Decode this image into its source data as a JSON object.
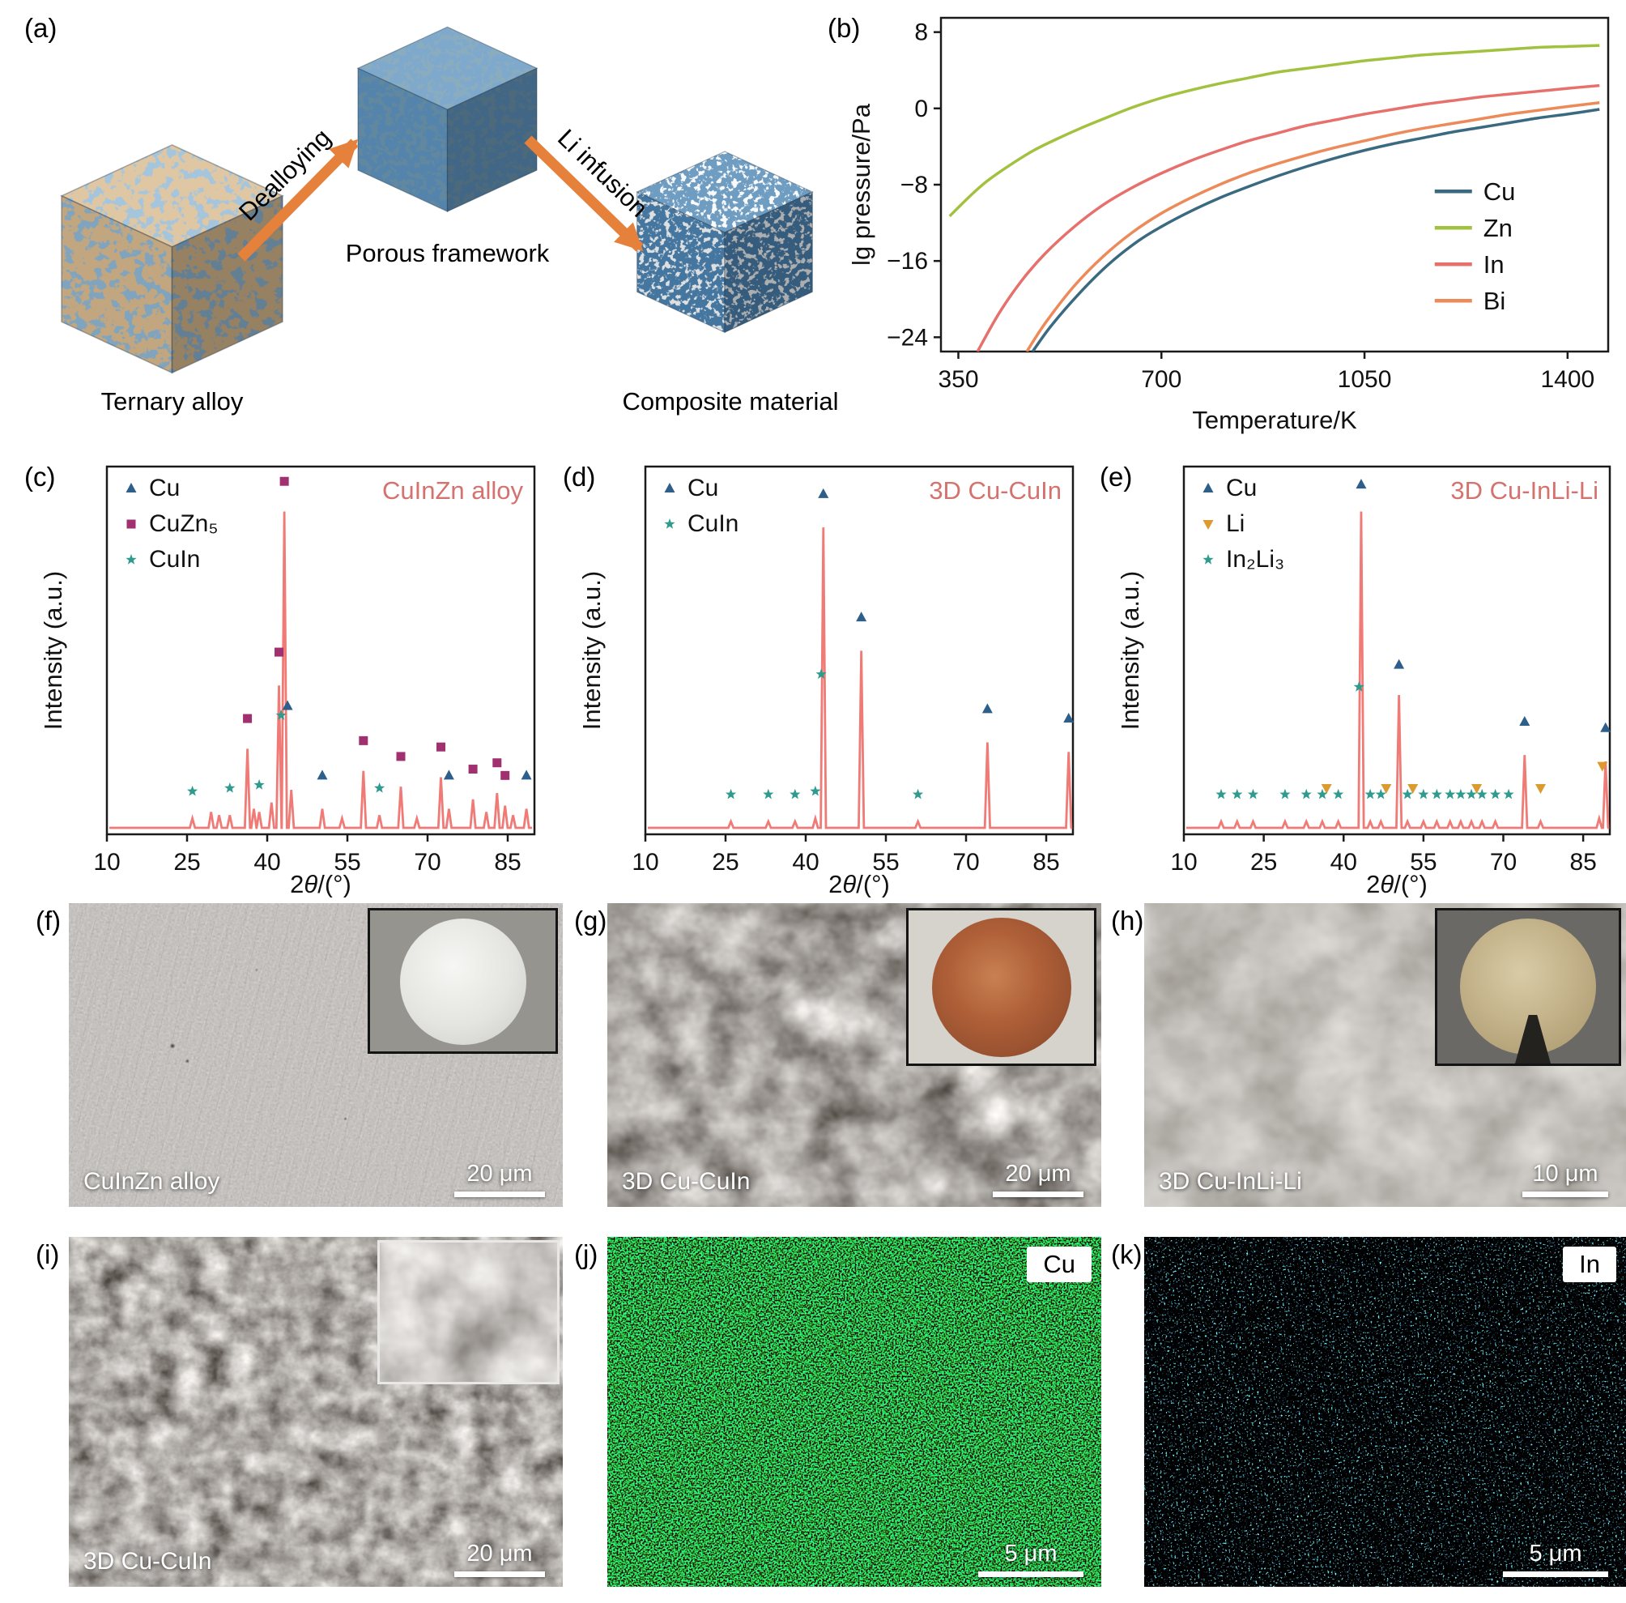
{
  "panel_a": {
    "letter": "(a)",
    "arrow_color": "#e6813c",
    "arrows": [
      {
        "label": "Dealloying"
      },
      {
        "label": "Li infusion"
      }
    ],
    "cubes": [
      {
        "label": "Ternary alloy",
        "base": "#d9b98e",
        "spot": "#4679a8"
      },
      {
        "label": "Porous framework",
        "base": "#5e93c0",
        "spot": "#27506f"
      },
      {
        "label": "Composite material",
        "base": "#4c84b2",
        "spot": "#eef2f5"
      }
    ]
  },
  "panel_b": {
    "letter": "(b)"
  },
  "panel_c": {
    "letter": "(c)"
  },
  "panel_d": {
    "letter": "(d)"
  },
  "panel_e": {
    "letter": "(e)"
  },
  "panel_f": {
    "letter": "(f)",
    "label": "CuInZn alloy",
    "scale": "20 μm"
  },
  "panel_g": {
    "letter": "(g)",
    "label": "3D Cu-CuIn",
    "scale": "20 μm"
  },
  "panel_h": {
    "letter": "(h)",
    "label": "3D Cu-InLi-Li",
    "scale": "10 μm"
  },
  "panel_i": {
    "letter": "(i)",
    "label": "3D Cu-CuIn",
    "scale": "20 μm"
  },
  "panel_j": {
    "letter": "(j)",
    "tag": "Cu",
    "scale": "5 μm"
  },
  "panel_k": {
    "letter": "(k)",
    "tag": "In",
    "scale": "5 μm"
  },
  "chart_data": [
    {
      "id": "b",
      "type": "line",
      "xlabel": "Temperature/K",
      "ylabel": "lg pressure/Pa",
      "xlim": [
        320,
        1470
      ],
      "ylim": [
        -25.5,
        9.5
      ],
      "xticks": [
        350,
        700,
        1050,
        1400
      ],
      "yticks": [
        8,
        0,
        -8,
        -16,
        -24
      ],
      "legend_position": "right-middle",
      "grid": false,
      "series": [
        {
          "name": "Cu",
          "color": "#3a6a80",
          "points": [
            [
              478,
              -25.5
            ],
            [
              510,
              -22.8
            ],
            [
              560,
              -19.3
            ],
            [
              610,
              -16.3
            ],
            [
              660,
              -13.9
            ],
            [
              700,
              -12.4
            ],
            [
              750,
              -10.8
            ],
            [
              800,
              -9.4
            ],
            [
              850,
              -8.2
            ],
            [
              900,
              -7.1
            ],
            [
              950,
              -6.1
            ],
            [
              1000,
              -5.2
            ],
            [
              1050,
              -4.4
            ],
            [
              1100,
              -3.7
            ],
            [
              1150,
              -3.1
            ],
            [
              1200,
              -2.5
            ],
            [
              1250,
              -2.0
            ],
            [
              1300,
              -1.5
            ],
            [
              1350,
              -1.0
            ],
            [
              1400,
              -0.6
            ],
            [
              1455,
              -0.1
            ]
          ]
        },
        {
          "name": "Zn",
          "color": "#a2c23f",
          "points": [
            [
              335,
              -11.3
            ],
            [
              370,
              -9.2
            ],
            [
              400,
              -7.6
            ],
            [
              440,
              -5.9
            ],
            [
              480,
              -4.4
            ],
            [
              520,
              -3.2
            ],
            [
              560,
              -2.1
            ],
            [
              600,
              -1.1
            ],
            [
              650,
              0.1
            ],
            [
              700,
              1.1
            ],
            [
              750,
              1.9
            ],
            [
              800,
              2.6
            ],
            [
              850,
              3.2
            ],
            [
              900,
              3.8
            ],
            [
              950,
              4.2
            ],
            [
              1000,
              4.6
            ],
            [
              1050,
              5.0
            ],
            [
              1100,
              5.3
            ],
            [
              1150,
              5.6
            ],
            [
              1200,
              5.8
            ],
            [
              1250,
              6.0
            ],
            [
              1300,
              6.2
            ],
            [
              1350,
              6.4
            ],
            [
              1400,
              6.5
            ],
            [
              1455,
              6.6
            ]
          ]
        },
        {
          "name": "In",
          "color": "#e7706c",
          "points": [
            [
              383,
              -25.5
            ],
            [
              420,
              -21.5
            ],
            [
              460,
              -18.0
            ],
            [
              500,
              -15.2
            ],
            [
              550,
              -12.4
            ],
            [
              600,
              -10.1
            ],
            [
              650,
              -8.3
            ],
            [
              700,
              -6.8
            ],
            [
              750,
              -5.5
            ],
            [
              800,
              -4.4
            ],
            [
              850,
              -3.4
            ],
            [
              900,
              -2.6
            ],
            [
              950,
              -1.8
            ],
            [
              1000,
              -1.2
            ],
            [
              1050,
              -0.6
            ],
            [
              1100,
              -0.1
            ],
            [
              1150,
              0.4
            ],
            [
              1200,
              0.8
            ],
            [
              1250,
              1.2
            ],
            [
              1300,
              1.5
            ],
            [
              1350,
              1.8
            ],
            [
              1400,
              2.1
            ],
            [
              1455,
              2.4
            ]
          ]
        },
        {
          "name": "Bi",
          "color": "#ec8a59",
          "points": [
            [
              468,
              -25.5
            ],
            [
              500,
              -22.5
            ],
            [
              550,
              -18.6
            ],
            [
              600,
              -15.5
            ],
            [
              650,
              -13.0
            ],
            [
              700,
              -11.0
            ],
            [
              750,
              -9.4
            ],
            [
              800,
              -8.0
            ],
            [
              850,
              -6.8
            ],
            [
              900,
              -5.8
            ],
            [
              950,
              -4.9
            ],
            [
              1000,
              -4.1
            ],
            [
              1050,
              -3.4
            ],
            [
              1100,
              -2.7
            ],
            [
              1150,
              -2.1
            ],
            [
              1200,
              -1.6
            ],
            [
              1250,
              -1.1
            ],
            [
              1300,
              -0.6
            ],
            [
              1350,
              -0.2
            ],
            [
              1400,
              0.2
            ],
            [
              1455,
              0.6
            ]
          ]
        }
      ]
    },
    {
      "id": "c",
      "type": "xrd",
      "title": "CuInZn alloy",
      "title_color": "#d4736e",
      "xlabel": "2θ/(°)",
      "ylabel": "Intensity (a.u.)",
      "xlim": [
        10,
        90
      ],
      "xticks": [
        10,
        25,
        40,
        55,
        70,
        85
      ],
      "line_color": "#ef7a76",
      "peaks": [
        [
          26,
          0.03
        ],
        [
          29.5,
          0.05
        ],
        [
          31,
          0.04
        ],
        [
          33,
          0.04
        ],
        [
          36.3,
          0.25
        ],
        [
          37.5,
          0.06
        ],
        [
          38.5,
          0.05
        ],
        [
          40.8,
          0.08
        ],
        [
          42.2,
          0.45
        ],
        [
          43.2,
          1.0
        ],
        [
          44.5,
          0.12
        ],
        [
          50.3,
          0.06
        ],
        [
          54,
          0.03
        ],
        [
          58,
          0.18
        ],
        [
          61,
          0.04
        ],
        [
          65,
          0.13
        ],
        [
          68,
          0.03
        ],
        [
          72.5,
          0.16
        ],
        [
          74,
          0.06
        ],
        [
          78.5,
          0.09
        ],
        [
          81,
          0.05
        ],
        [
          83,
          0.11
        ],
        [
          84.5,
          0.07
        ],
        [
          86,
          0.04
        ],
        [
          88.5,
          0.06
        ]
      ],
      "legend": [
        {
          "name": "Cu",
          "marker": "triangle",
          "color": "#2d5f8a"
        },
        {
          "name": "CuZn₅",
          "marker": "square",
          "color": "#a03070"
        },
        {
          "name": "CuIn",
          "marker": "star",
          "color": "#2f9b8e"
        }
      ],
      "markers": {
        "triangle": [
          [
            43.8,
            0.36
          ],
          [
            50.3,
            0.14
          ],
          [
            74,
            0.14
          ],
          [
            88.5,
            0.14
          ]
        ],
        "square": [
          [
            36.3,
            0.32
          ],
          [
            42.2,
            0.53
          ],
          [
            43.2,
            1.07
          ],
          [
            58,
            0.25
          ],
          [
            65,
            0.2
          ],
          [
            72.5,
            0.23
          ],
          [
            78.5,
            0.16
          ],
          [
            83,
            0.18
          ],
          [
            84.5,
            0.14
          ]
        ],
        "star": [
          [
            26,
            0.09
          ],
          [
            33,
            0.1
          ],
          [
            38.5,
            0.11
          ],
          [
            42.6,
            0.33
          ],
          [
            61,
            0.1
          ]
        ]
      }
    },
    {
      "id": "d",
      "type": "xrd",
      "title": "3D Cu-CuIn",
      "title_color": "#d4736e",
      "xlabel": "2θ/(°)",
      "ylabel": "Intensity (a.u.)",
      "xlim": [
        10,
        90
      ],
      "xticks": [
        10,
        25,
        40,
        55,
        70,
        85
      ],
      "line_color": "#ef7a76",
      "peaks": [
        [
          26,
          0.02
        ],
        [
          33,
          0.02
        ],
        [
          38,
          0.02
        ],
        [
          41.8,
          0.03
        ],
        [
          43.3,
          0.95
        ],
        [
          50.4,
          0.56
        ],
        [
          61,
          0.02
        ],
        [
          74,
          0.27
        ],
        [
          89.2,
          0.24
        ]
      ],
      "legend": [
        {
          "name": "Cu",
          "marker": "triangle",
          "color": "#2d5f8a"
        },
        {
          "name": "CuIn",
          "marker": "star",
          "color": "#2f9b8e"
        }
      ],
      "markers": {
        "triangle": [
          [
            43.3,
            1.03
          ],
          [
            50.4,
            0.64
          ],
          [
            74,
            0.35
          ],
          [
            89.2,
            0.32
          ]
        ],
        "star": [
          [
            26,
            0.08
          ],
          [
            33,
            0.08
          ],
          [
            38,
            0.08
          ],
          [
            41.8,
            0.09
          ],
          [
            42.9,
            0.46
          ],
          [
            61,
            0.08
          ]
        ]
      }
    },
    {
      "id": "e",
      "type": "xrd",
      "title": "3D Cu-InLi-Li",
      "title_color": "#d4736e",
      "xlabel": "2θ/(°)",
      "ylabel": "Intensity (a.u.)",
      "xlim": [
        10,
        90
      ],
      "xticks": [
        10,
        25,
        40,
        55,
        70,
        85
      ],
      "line_color": "#ef7a76",
      "peaks": [
        [
          17,
          0.02
        ],
        [
          20,
          0.02
        ],
        [
          23,
          0.02
        ],
        [
          29,
          0.02
        ],
        [
          33,
          0.02
        ],
        [
          36,
          0.02
        ],
        [
          39,
          0.02
        ],
        [
          43.3,
          1.0
        ],
        [
          45,
          0.02
        ],
        [
          47,
          0.02
        ],
        [
          50.4,
          0.42
        ],
        [
          52,
          0.02
        ],
        [
          55,
          0.02
        ],
        [
          57.5,
          0.02
        ],
        [
          60,
          0.02
        ],
        [
          62,
          0.02
        ],
        [
          64,
          0.02
        ],
        [
          66,
          0.02
        ],
        [
          68.5,
          0.02
        ],
        [
          74,
          0.23
        ],
        [
          77,
          0.02
        ],
        [
          88,
          0.03
        ],
        [
          89.2,
          0.21
        ]
      ],
      "legend": [
        {
          "name": "Cu",
          "marker": "triangle",
          "color": "#2d5f8a"
        },
        {
          "name": "Li",
          "marker": "tridown",
          "color": "#dd9a2e"
        },
        {
          "name": "In₂Li₃",
          "marker": "star",
          "color": "#2f9b8e"
        }
      ],
      "markers": {
        "triangle": [
          [
            43.3,
            1.06
          ],
          [
            50.4,
            0.49
          ],
          [
            74,
            0.31
          ],
          [
            89.2,
            0.29
          ]
        ],
        "tridown": [
          [
            36.8,
            0.1
          ],
          [
            48,
            0.1
          ],
          [
            53,
            0.1
          ],
          [
            65,
            0.1
          ],
          [
            77,
            0.1
          ],
          [
            88.6,
            0.17
          ]
        ],
        "star": [
          [
            17,
            0.08
          ],
          [
            20,
            0.08
          ],
          [
            23,
            0.08
          ],
          [
            29,
            0.08
          ],
          [
            33,
            0.08
          ],
          [
            36,
            0.08
          ],
          [
            39,
            0.08
          ],
          [
            42.9,
            0.42
          ],
          [
            45,
            0.08
          ],
          [
            47,
            0.08
          ],
          [
            52,
            0.08
          ],
          [
            55,
            0.08
          ],
          [
            57.5,
            0.08
          ],
          [
            60,
            0.08
          ],
          [
            62,
            0.08
          ],
          [
            64,
            0.08
          ],
          [
            66,
            0.08
          ],
          [
            68.5,
            0.08
          ],
          [
            71,
            0.08
          ]
        ]
      }
    }
  ]
}
